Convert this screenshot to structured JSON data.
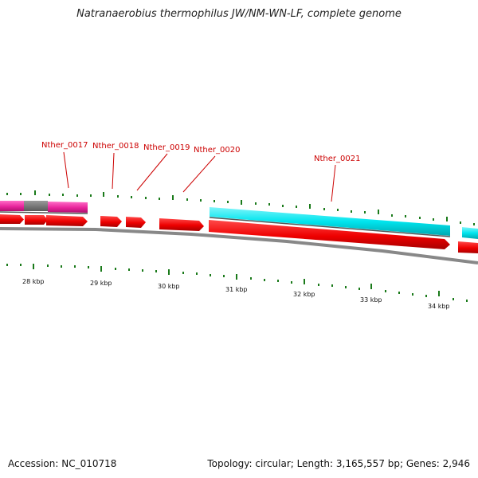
{
  "title": "Natranaerobius thermophilus JW/NM-WN-LF, complete genome",
  "accession": "Accession: NC_010718",
  "summary": "Topology: circular; Length: 3,165,557 bp; Genes: 2,946",
  "gene_labels": [
    "Nther_0017",
    "Nther_0018",
    "Nther_0019",
    "Nther_0020",
    "Nther_0021"
  ],
  "scale_labels": [
    "28 kbp",
    "29 kbp",
    "30 kbp",
    "31 kbp",
    "32 kbp",
    "33 kbp",
    "34 kbp"
  ],
  "colors": {
    "cds": "#ee0000",
    "rna": "#00e5ee",
    "pink": "#e8259c",
    "gray_block": "#707070",
    "backbone": "#888888",
    "tick": "#1a7a1a",
    "label": "#cc0000"
  }
}
